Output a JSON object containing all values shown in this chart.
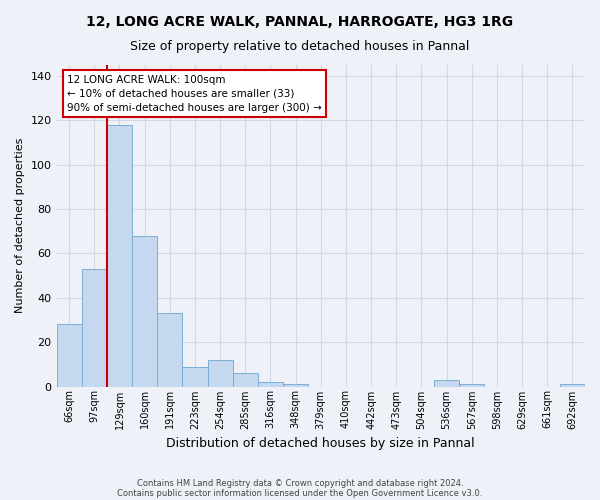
{
  "title1": "12, LONG ACRE WALK, PANNAL, HARROGATE, HG3 1RG",
  "title2": "Size of property relative to detached houses in Pannal",
  "xlabel": "Distribution of detached houses by size in Pannal",
  "ylabel": "Number of detached properties",
  "bin_labels": [
    "66sqm",
    "97sqm",
    "129sqm",
    "160sqm",
    "191sqm",
    "223sqm",
    "254sqm",
    "285sqm",
    "316sqm",
    "348sqm",
    "379sqm",
    "410sqm",
    "442sqm",
    "473sqm",
    "504sqm",
    "536sqm",
    "567sqm",
    "598sqm",
    "629sqm",
    "661sqm",
    "692sqm"
  ],
  "bar_values": [
    28,
    53,
    118,
    68,
    33,
    9,
    12,
    6,
    2,
    1,
    0,
    0,
    0,
    0,
    0,
    3,
    1,
    0,
    0,
    0,
    1
  ],
  "bar_color": "#c5d8f0",
  "bar_edge_color": "#7bafd4",
  "grid_color": "#d0d8e8",
  "background_color": "#eef2f8",
  "annotation_line1": "12 LONG ACRE WALK: 100sqm",
  "annotation_line2": "← 10% of detached houses are smaller (33)",
  "annotation_line3": "90% of semi-detached houses are larger (300) →",
  "annotation_box_facecolor": "#ffffff",
  "annotation_box_edgecolor": "#cc0000",
  "red_line_color": "#cc0000",
  "ylim": [
    0,
    145
  ],
  "yticks": [
    0,
    20,
    40,
    60,
    80,
    100,
    120,
    140
  ],
  "footer1": "Contains HM Land Registry data © Crown copyright and database right 2024.",
  "footer2": "Contains public sector information licensed under the Open Government Licence v3.0."
}
